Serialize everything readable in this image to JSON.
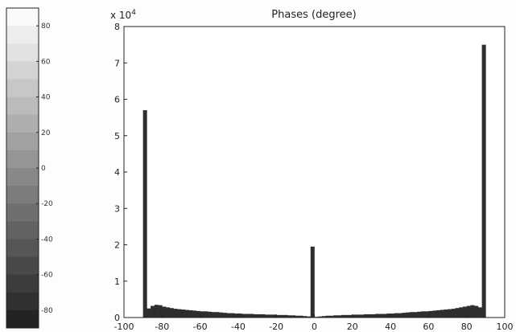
{
  "colorbar": {
    "ticks": [
      80,
      60,
      40,
      20,
      0,
      -20,
      -40,
      -60,
      -80
    ],
    "range": [
      -90,
      90
    ]
  },
  "chart_data": {
    "type": "bar",
    "title": "Phases (degree)",
    "xlabel": "",
    "ylabel": "",
    "y_exponent_label": "x 10",
    "y_exponent_power": "4",
    "xlim": [
      -100,
      100
    ],
    "ylim": [
      0,
      8
    ],
    "x_ticks": [
      -100,
      -80,
      -60,
      -40,
      -20,
      0,
      20,
      40,
      60,
      80,
      100
    ],
    "y_ticks": [
      0,
      1,
      2,
      3,
      4,
      5,
      6,
      7,
      8
    ],
    "grid": false,
    "bin_width": 2,
    "x": [
      -89,
      -87,
      -85,
      -83,
      -81,
      -79,
      -77,
      -75,
      -73,
      -71,
      -69,
      -67,
      -65,
      -63,
      -61,
      -59,
      -57,
      -55,
      -53,
      -51,
      -49,
      -47,
      -45,
      -43,
      -41,
      -39,
      -37,
      -35,
      -33,
      -31,
      -29,
      -27,
      -25,
      -23,
      -21,
      -19,
      -17,
      -15,
      -13,
      -11,
      -9,
      -7,
      -5,
      -3,
      -1,
      1,
      3,
      5,
      7,
      9,
      11,
      13,
      15,
      17,
      19,
      21,
      23,
      25,
      27,
      29,
      31,
      33,
      35,
      37,
      39,
      41,
      43,
      45,
      47,
      49,
      51,
      53,
      55,
      57,
      59,
      61,
      63,
      65,
      67,
      69,
      71,
      73,
      75,
      77,
      79,
      81,
      83,
      85,
      87,
      89
    ],
    "values": [
      5.7,
      0.25,
      0.32,
      0.35,
      0.34,
      0.3,
      0.28,
      0.26,
      0.24,
      0.23,
      0.22,
      0.21,
      0.2,
      0.19,
      0.18,
      0.17,
      0.17,
      0.16,
      0.15,
      0.15,
      0.14,
      0.13,
      0.12,
      0.12,
      0.11,
      0.11,
      0.1,
      0.1,
      0.1,
      0.09,
      0.09,
      0.09,
      0.08,
      0.08,
      0.08,
      0.07,
      0.07,
      0.07,
      0.06,
      0.06,
      0.05,
      0.05,
      0.04,
      0.03,
      1.95,
      0.02,
      0.03,
      0.04,
      0.05,
      0.05,
      0.06,
      0.06,
      0.07,
      0.07,
      0.07,
      0.08,
      0.08,
      0.08,
      0.09,
      0.09,
      0.09,
      0.1,
      0.1,
      0.1,
      0.11,
      0.11,
      0.12,
      0.12,
      0.13,
      0.14,
      0.15,
      0.15,
      0.16,
      0.17,
      0.17,
      0.18,
      0.19,
      0.2,
      0.21,
      0.22,
      0.23,
      0.24,
      0.26,
      0.28,
      0.3,
      0.32,
      0.34,
      0.32,
      0.28,
      7.5
    ],
    "bar_color": "#2e2e2e"
  }
}
